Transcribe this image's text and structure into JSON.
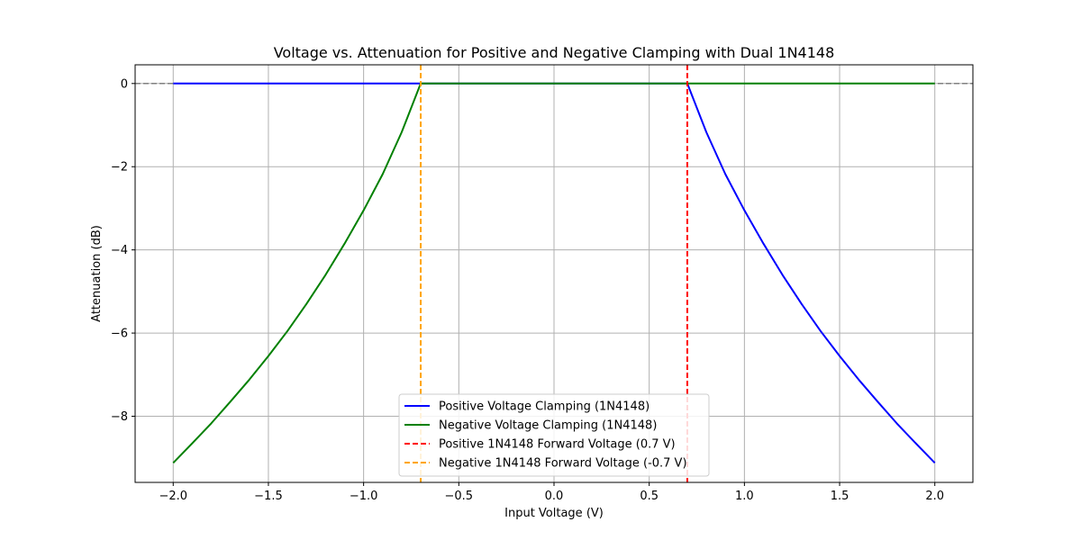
{
  "chart_data": {
    "type": "line",
    "title": "Voltage vs. Attenuation for Positive and Negative Clamping with Dual 1N4148",
    "xlabel": "Input Voltage (V)",
    "ylabel": "Attenuation (dB)",
    "xlim": [
      -2.2,
      2.2
    ],
    "ylim": [
      -9.59,
      0.45
    ],
    "xticks": [
      -2.0,
      -1.5,
      -1.0,
      -0.5,
      0.0,
      0.5,
      1.0,
      1.5,
      2.0
    ],
    "xtick_labels": [
      "−2.0",
      "−1.5",
      "−1.0",
      "−0.5",
      "0.0",
      "0.5",
      "1.0",
      "1.5",
      "2.0"
    ],
    "yticks": [
      0,
      -2,
      -4,
      -6,
      -8
    ],
    "ytick_labels": [
      "0",
      "−2",
      "−4",
      "−6",
      "−8"
    ],
    "grid": true,
    "legend_position": "bottom-center",
    "series": [
      {
        "name": "Positive Voltage Clamping (1N4148)",
        "color": "#0000ff",
        "style": "solid",
        "x": [
          -2.0,
          0.7,
          0.8,
          0.9,
          1.0,
          1.1,
          1.2,
          1.3,
          1.4,
          1.5,
          1.6,
          1.7,
          1.8,
          1.9,
          2.0
        ],
        "y": [
          0,
          0,
          -1.17,
          -2.18,
          -3.05,
          -3.85,
          -4.6,
          -5.3,
          -5.95,
          -6.55,
          -7.12,
          -7.65,
          -8.17,
          -8.65,
          -9.12
        ]
      },
      {
        "name": "Negative Voltage Clamping (1N4148)",
        "color": "#008000",
        "style": "solid",
        "x": [
          -2.0,
          -1.9,
          -1.8,
          -1.7,
          -1.6,
          -1.5,
          -1.4,
          -1.3,
          -1.2,
          -1.1,
          -1.0,
          -0.9,
          -0.8,
          -0.7,
          2.0
        ],
        "y": [
          -9.12,
          -8.65,
          -8.17,
          -7.65,
          -7.12,
          -6.55,
          -5.95,
          -5.3,
          -4.6,
          -3.85,
          -3.05,
          -2.18,
          -1.17,
          0,
          0
        ]
      },
      {
        "name": "Positive 1N4148 Forward Voltage (0.7 V)",
        "color": "#ff0000",
        "style": "dashed",
        "vline": 0.7
      },
      {
        "name": "Negative 1N4148 Forward Voltage (-0.7 V)",
        "color": "#ffa500",
        "style": "dashed",
        "vline": -0.7
      }
    ],
    "reference_line": {
      "y": 0,
      "color": "#808080",
      "style": "dashed"
    }
  }
}
